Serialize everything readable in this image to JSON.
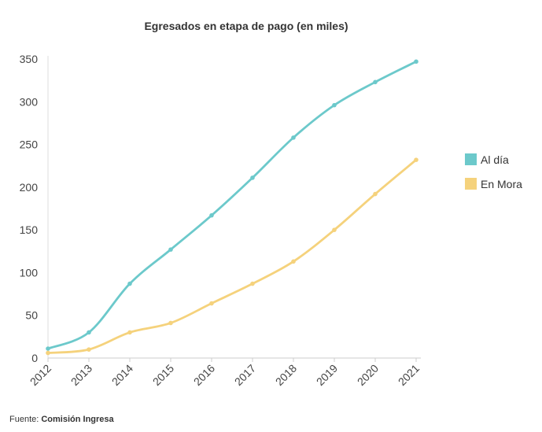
{
  "chart_data": {
    "type": "line",
    "title": "Egresados en etapa de pago (en miles)",
    "categories": [
      "2012",
      "2013",
      "2014",
      "2015",
      "2016",
      "2017",
      "2018",
      "2019",
      "2020",
      "2021"
    ],
    "series": [
      {
        "name": "Al día",
        "color": "#6cc9cb",
        "values": [
          11,
          30,
          87,
          127,
          167,
          211,
          258,
          296,
          323,
          347
        ]
      },
      {
        "name": "En Mora",
        "color": "#f5d27c",
        "values": [
          6,
          10,
          30,
          41,
          64,
          87,
          113,
          150,
          192,
          232
        ]
      }
    ],
    "ylim": [
      0,
      350
    ],
    "yticks": [
      0,
      50,
      100,
      150,
      200,
      250,
      300,
      350
    ],
    "xlabel": "",
    "ylabel": "",
    "grid": false,
    "legend_position": "right"
  },
  "source": {
    "prefix": "Fuente: ",
    "name": "Comisión Ingresa"
  }
}
